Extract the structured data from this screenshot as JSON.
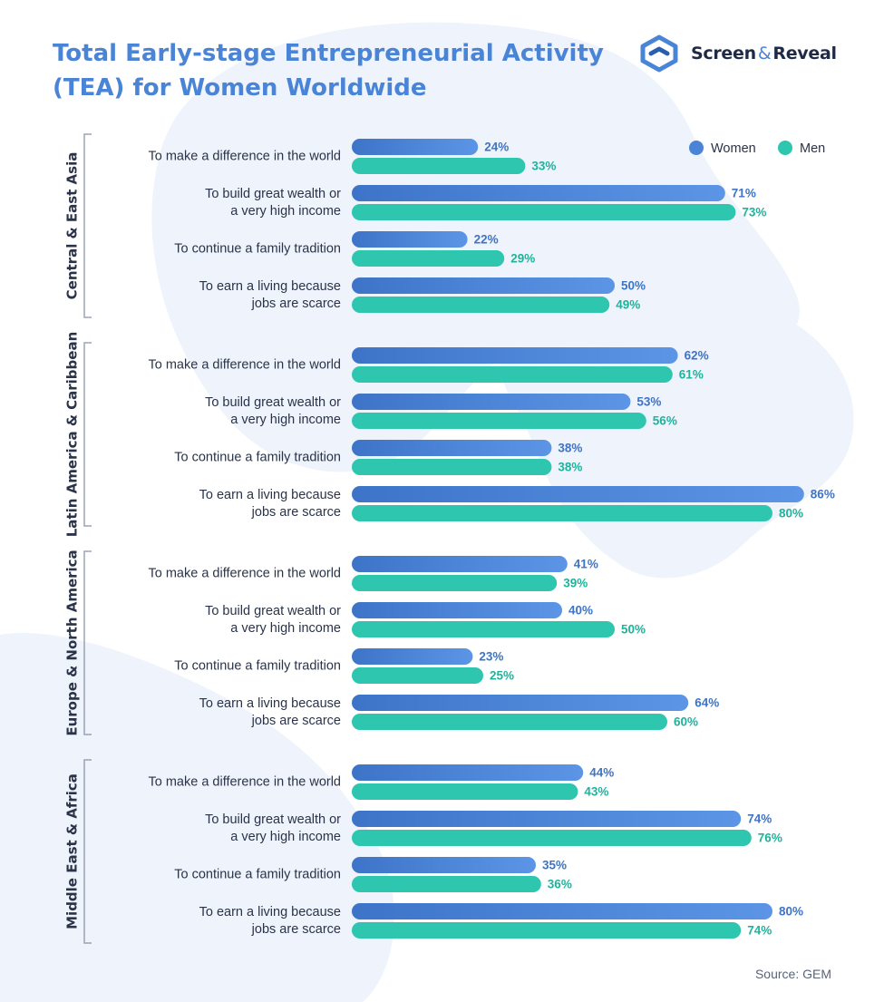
{
  "header": {
    "title": "Total Early-stage Entrepreneurial Activity (TEA) for Women Worldwide",
    "logo": {
      "name_a": "Screen",
      "amp": "&",
      "name_b": "Reveal",
      "icon": "screen-reveal-logo-icon"
    }
  },
  "source": "Source: GEM",
  "colors": {
    "women": "#4a84d6",
    "men": "#2ec6ae",
    "women_text": "#3f74c5",
    "men_text": "#20b39c",
    "label": "#2a3348",
    "bracket": "#9aa3b5",
    "blob": "#eef3fc"
  },
  "chart_data": {
    "type": "bar",
    "orientation": "horizontal",
    "title": "Total Early-stage Entrepreneurial Activity (TEA) for Women Worldwide",
    "unit": "%",
    "legend": {
      "position": "top-right",
      "entries": [
        "Women",
        "Men"
      ]
    },
    "grid": false,
    "xlim": [
      0,
      100
    ],
    "series_names": [
      "Women",
      "Men"
    ],
    "groups": [
      {
        "region": "Central & East Asia",
        "rows": [
          {
            "label": [
              "To make a difference in the world"
            ],
            "women": 24,
            "men": 33
          },
          {
            "label": [
              "To build great wealth or",
              "a very high income"
            ],
            "women": 71,
            "men": 73
          },
          {
            "label": [
              "To continue a family tradition"
            ],
            "women": 22,
            "men": 29
          },
          {
            "label": [
              "To earn a living because",
              "jobs are scarce"
            ],
            "women": 50,
            "men": 49
          }
        ]
      },
      {
        "region": "Latin America & Caribbean",
        "rows": [
          {
            "label": [
              "To make a difference in the world"
            ],
            "women": 62,
            "men": 61
          },
          {
            "label": [
              "To build great wealth or",
              "a very high income"
            ],
            "women": 53,
            "men": 56
          },
          {
            "label": [
              "To continue a family tradition"
            ],
            "women": 38,
            "men": 38
          },
          {
            "label": [
              "To earn a living because",
              "jobs are scarce"
            ],
            "women": 86,
            "men": 80
          }
        ]
      },
      {
        "region": "Europe & North America",
        "rows": [
          {
            "label": [
              "To make a difference in the world"
            ],
            "women": 41,
            "men": 39
          },
          {
            "label": [
              "To build great wealth or",
              "a very high income"
            ],
            "women": 40,
            "men": 50
          },
          {
            "label": [
              "To continue a family tradition"
            ],
            "women": 23,
            "men": 25
          },
          {
            "label": [
              "To earn a living because",
              "jobs are scarce"
            ],
            "women": 64,
            "men": 60
          }
        ]
      },
      {
        "region": "Middle East & Africa",
        "rows": [
          {
            "label": [
              "To make a difference in the world"
            ],
            "women": 44,
            "men": 43
          },
          {
            "label": [
              "To build great wealth or",
              "a very high income"
            ],
            "women": 74,
            "men": 76
          },
          {
            "label": [
              "To continue a family tradition"
            ],
            "women": 35,
            "men": 36
          },
          {
            "label": [
              "To earn a living because",
              "jobs are scarce"
            ],
            "women": 80,
            "men": 74
          }
        ]
      }
    ]
  }
}
